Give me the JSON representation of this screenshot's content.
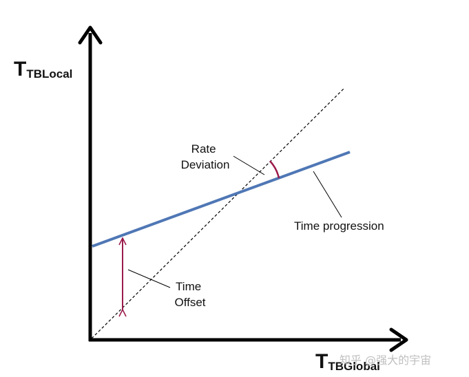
{
  "axes": {
    "y_label_main": "T",
    "y_label_sub": "TBLocal",
    "x_label_main": "T",
    "x_label_sub": "TBGlobal"
  },
  "annotations": {
    "rate_deviation_line1": "Rate",
    "rate_deviation_line2": "Deviation",
    "time_progression": "Time progression",
    "time_offset_line1": "Time",
    "time_offset_line2": "Offset"
  },
  "watermark": "知乎 @强大的宇宙",
  "colors": {
    "axis": "#000000",
    "progression_line": "#4f77b5",
    "marker": "#9b1a4a",
    "reference_line": "#000000"
  }
}
